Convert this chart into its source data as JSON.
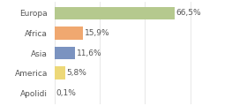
{
  "categories": [
    "Europa",
    "Africa",
    "Asia",
    "America",
    "Apolidi"
  ],
  "values": [
    66.5,
    15.9,
    11.6,
    5.8,
    0.1
  ],
  "labels": [
    "66,5%",
    "15,9%",
    "11,6%",
    "5,8%",
    "0,1%"
  ],
  "bar_colors": [
    "#b5c98e",
    "#f0a870",
    "#7b93c0",
    "#edd878",
    "#e0e0e0"
  ],
  "background_color": "#ffffff",
  "label_fontsize": 6.5,
  "category_fontsize": 6.5,
  "grid_color": "#dddddd",
  "text_color": "#555555",
  "xlim": [
    0,
    90
  ],
  "bar_height": 0.65
}
